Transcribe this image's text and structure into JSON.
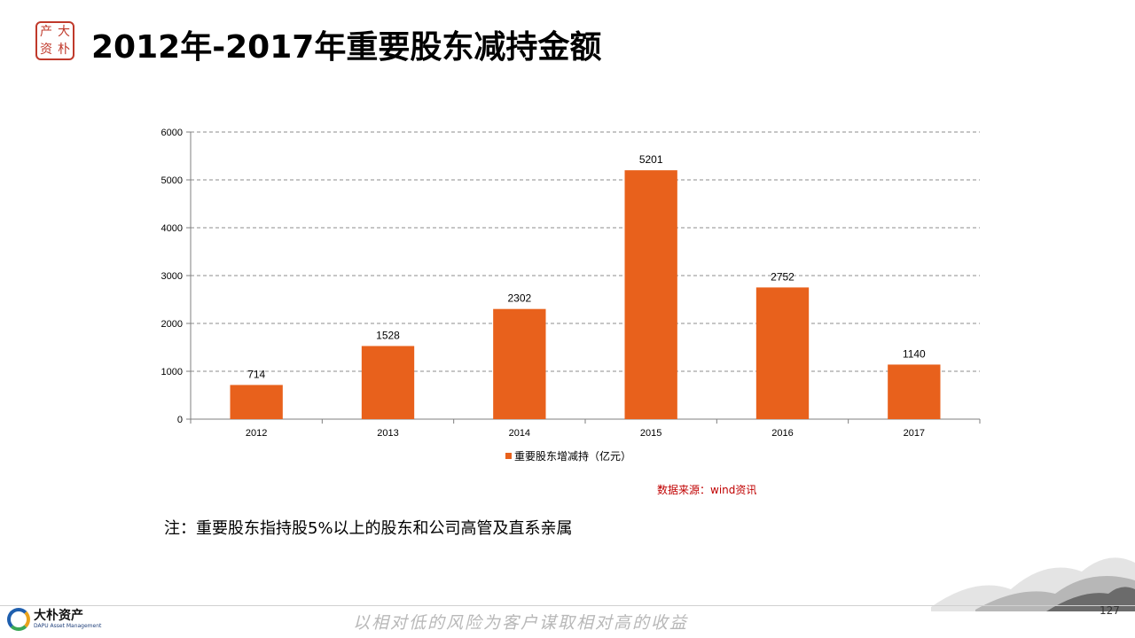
{
  "header": {
    "seal_chars": [
      "大",
      "朴",
      "资",
      "产"
    ],
    "title": "2012年-2017年重要股东减持金额"
  },
  "chart_data": {
    "type": "bar",
    "categories": [
      "2012",
      "2013",
      "2014",
      "2015",
      "2016",
      "2017"
    ],
    "series": [
      {
        "name": "重要股东增减持（亿元）",
        "values": [
          714,
          1528,
          2302,
          5201,
          2752,
          1140
        ],
        "color": "#e8611c"
      }
    ],
    "ylim": [
      0,
      6000
    ],
    "yticks": [
      0,
      1000,
      2000,
      3000,
      4000,
      5000,
      6000
    ],
    "grid": true,
    "legend_position": "bottom",
    "data_labels": true
  },
  "legend_label": "重要股东增减持（亿元）",
  "source": "数据来源：wind资讯",
  "note": "注：重要股东指持股5%以上的股东和公司高管及直系亲属",
  "footer": {
    "logo_cn": "大朴资产",
    "logo_en": "DAPU Asset Management",
    "slogan": "以相对低的风险为客户谋取相对高的收益",
    "page_number": "127"
  },
  "colors": {
    "bar": "#e8611c",
    "source_text": "#c00000",
    "seal": "#c0392b"
  }
}
